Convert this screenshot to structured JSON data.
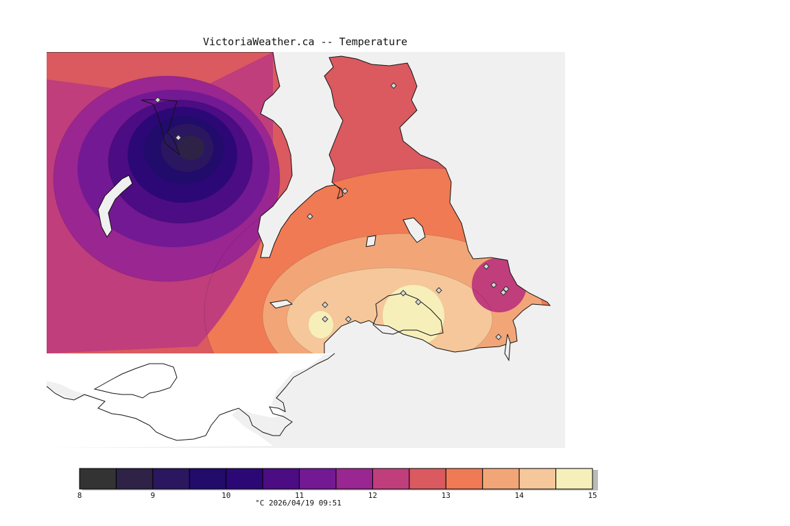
{
  "title": "VictoriaWeather.ca -- Temperature",
  "caption": "°C 2026/04/19 09:51",
  "legend": {
    "bins": [
      {
        "from": 8.0,
        "to": 8.5,
        "color": "#333333"
      },
      {
        "from": 8.5,
        "to": 9.0,
        "color": "#2e2247"
      },
      {
        "from": 9.0,
        "to": 9.5,
        "color": "#2b1760"
      },
      {
        "from": 9.5,
        "to": 10.0,
        "color": "#210b6b"
      },
      {
        "from": 10.0,
        "to": 10.5,
        "color": "#2c0876"
      },
      {
        "from": 10.5,
        "to": 11.0,
        "color": "#4c0c83"
      },
      {
        "from": 11.0,
        "to": 11.5,
        "color": "#731994"
      },
      {
        "from": 11.5,
        "to": 12.0,
        "color": "#9a2692"
      },
      {
        "from": 12.0,
        "to": 12.5,
        "color": "#c03e7c"
      },
      {
        "from": 12.5,
        "to": 13.0,
        "color": "#da5a5f"
      },
      {
        "from": 13.0,
        "to": 13.5,
        "color": "#f07a54"
      },
      {
        "from": 13.5,
        "to": 14.0,
        "color": "#f2a677"
      },
      {
        "from": 14.0,
        "to": 14.5,
        "color": "#f5c79a"
      },
      {
        "from": 14.5,
        "to": 15.0,
        "color": "#f6efba"
      }
    ],
    "ticks": [
      "8",
      "9",
      "10",
      "11",
      "12",
      "13",
      "14",
      "15"
    ]
  },
  "colors": {
    "water": "#f0f0f0",
    "land_outside": "#ffffff",
    "coast": "#111111",
    "station_marker": "#d8d8d8"
  },
  "stations_icon": "diamond-marker-icon"
}
